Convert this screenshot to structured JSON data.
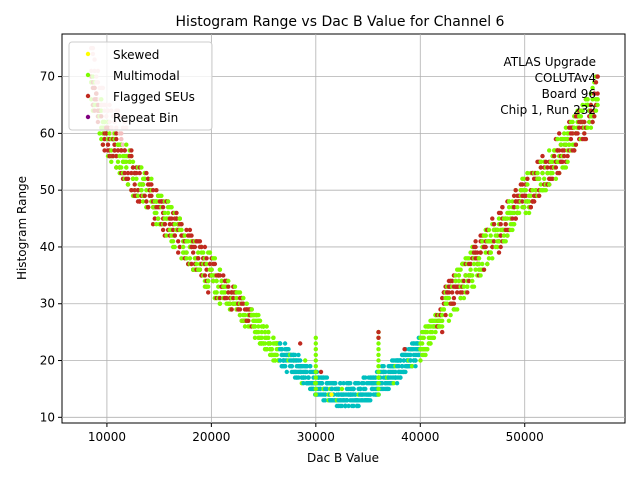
{
  "chart_data": {
    "type": "scatter",
    "title": "Histogram Range vs Dac B Value for Channel 6",
    "xlabel": "Dac B Value",
    "ylabel": "Histogram Range",
    "xlim": [
      5700,
      59600
    ],
    "ylim": [
      9,
      77.5
    ],
    "xticks": [
      10000,
      20000,
      30000,
      40000,
      50000
    ],
    "yticks": [
      10,
      20,
      30,
      40,
      50,
      60,
      70
    ],
    "grid": true,
    "legend_position": "top-left",
    "series": [
      {
        "name": "Skewed",
        "color": "#ffff00"
      },
      {
        "name": "Multimodal",
        "color": "#7cfc00"
      },
      {
        "name": "Flagged SEUs",
        "color": "#c0291f"
      },
      {
        "name": "Repeat Bin",
        "color": "#800080"
      }
    ],
    "base_color": "#00bfbf",
    "envelope": [
      {
        "x": 8500,
        "y": 68
      },
      {
        "x": 10000,
        "y": 59
      },
      {
        "x": 12000,
        "y": 54
      },
      {
        "x": 14000,
        "y": 49
      },
      {
        "x": 16000,
        "y": 44
      },
      {
        "x": 18000,
        "y": 40
      },
      {
        "x": 20000,
        "y": 35
      },
      {
        "x": 22000,
        "y": 31
      },
      {
        "x": 24000,
        "y": 27
      },
      {
        "x": 26000,
        "y": 22
      },
      {
        "x": 28000,
        "y": 19
      },
      {
        "x": 30000,
        "y": 16
      },
      {
        "x": 32000,
        "y": 14
      },
      {
        "x": 34000,
        "y": 14
      },
      {
        "x": 36000,
        "y": 16
      },
      {
        "x": 38000,
        "y": 19
      },
      {
        "x": 40000,
        "y": 22
      },
      {
        "x": 42000,
        "y": 28
      },
      {
        "x": 44000,
        "y": 34
      },
      {
        "x": 46000,
        "y": 39
      },
      {
        "x": 48000,
        "y": 44
      },
      {
        "x": 50000,
        "y": 49
      },
      {
        "x": 52000,
        "y": 53
      },
      {
        "x": 54000,
        "y": 58
      },
      {
        "x": 56000,
        "y": 63
      },
      {
        "x": 57000,
        "y": 67
      }
    ],
    "band_extra_at_36000": {
      "x": 36000,
      "y_min": 14,
      "y_max": 25
    },
    "band_extra_at_30000": {
      "x": 30000,
      "y_min": 14,
      "y_max": 24
    },
    "annotations": [
      "ATLAS Upgrade",
      "COLUTAv4",
      "Board 96",
      "Chip 1, Run 232"
    ]
  }
}
